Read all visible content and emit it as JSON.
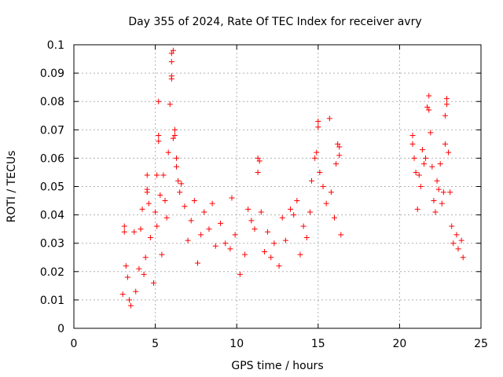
{
  "chart_data": {
    "type": "scatter",
    "title": "Day 355 of 2024, Rate Of TEC Index for receiver avry",
    "xlabel": "GPS time / hours",
    "ylabel": "ROTI / TECUs",
    "xlim": [
      0,
      25
    ],
    "ylim": [
      0,
      0.1
    ],
    "xticks": [
      0,
      5,
      10,
      15,
      20,
      25
    ],
    "yticks": [
      0,
      0.01,
      0.02,
      0.03,
      0.04,
      0.05,
      0.06,
      0.07,
      0.08,
      0.09,
      0.1
    ],
    "xtick_labels": [
      "0",
      "5",
      "10",
      "15",
      "20",
      "25"
    ],
    "ytick_labels": [
      "0",
      "0.01",
      "0.02",
      "0.03",
      "0.04",
      "0.05",
      "0.06",
      "0.07",
      "0.08",
      "0.09",
      "0.1"
    ],
    "grid": true,
    "marker": "+",
    "color": "#ff0000",
    "series": [
      {
        "points": [
          [
            3.0,
            0.012
          ],
          [
            3.1,
            0.034
          ],
          [
            3.1,
            0.036
          ],
          [
            3.2,
            0.022
          ],
          [
            3.3,
            0.018
          ],
          [
            3.4,
            0.01
          ],
          [
            3.5,
            0.008
          ],
          [
            3.7,
            0.034
          ],
          [
            3.8,
            0.013
          ],
          [
            4.0,
            0.021
          ],
          [
            4.1,
            0.035
          ],
          [
            4.2,
            0.042
          ],
          [
            4.3,
            0.019
          ],
          [
            4.4,
            0.025
          ],
          [
            4.5,
            0.054
          ],
          [
            4.5,
            0.049
          ],
          [
            4.5,
            0.048
          ],
          [
            4.6,
            0.044
          ],
          [
            4.7,
            0.032
          ],
          [
            4.9,
            0.016
          ],
          [
            5.0,
            0.041
          ],
          [
            5.1,
            0.036
          ],
          [
            5.1,
            0.054
          ],
          [
            5.2,
            0.066
          ],
          [
            5.2,
            0.068
          ],
          [
            5.2,
            0.08
          ],
          [
            5.3,
            0.047
          ],
          [
            5.4,
            0.026
          ],
          [
            5.5,
            0.054
          ],
          [
            5.6,
            0.045
          ],
          [
            5.7,
            0.039
          ],
          [
            5.8,
            0.062
          ],
          [
            5.9,
            0.079
          ],
          [
            6.0,
            0.088
          ],
          [
            6.0,
            0.089
          ],
          [
            6.0,
            0.094
          ],
          [
            6.0,
            0.097
          ],
          [
            6.1,
            0.098
          ],
          [
            6.1,
            0.067
          ],
          [
            6.2,
            0.07
          ],
          [
            6.2,
            0.068
          ],
          [
            6.3,
            0.06
          ],
          [
            6.3,
            0.057
          ],
          [
            6.4,
            0.052
          ],
          [
            6.5,
            0.048
          ],
          [
            6.6,
            0.051
          ],
          [
            6.8,
            0.043
          ],
          [
            7.0,
            0.031
          ],
          [
            7.2,
            0.038
          ],
          [
            7.4,
            0.045
          ],
          [
            7.6,
            0.023
          ],
          [
            7.8,
            0.033
          ],
          [
            8.0,
            0.041
          ],
          [
            8.3,
            0.035
          ],
          [
            8.5,
            0.044
          ],
          [
            8.7,
            0.029
          ],
          [
            9.0,
            0.037
          ],
          [
            9.3,
            0.03
          ],
          [
            9.6,
            0.028
          ],
          [
            9.7,
            0.046
          ],
          [
            9.9,
            0.033
          ],
          [
            10.2,
            0.019
          ],
          [
            10.5,
            0.026
          ],
          [
            10.7,
            0.042
          ],
          [
            10.9,
            0.038
          ],
          [
            11.1,
            0.035
          ],
          [
            11.3,
            0.06
          ],
          [
            11.4,
            0.059
          ],
          [
            11.3,
            0.055
          ],
          [
            11.5,
            0.041
          ],
          [
            11.7,
            0.027
          ],
          [
            11.9,
            0.034
          ],
          [
            12.1,
            0.025
          ],
          [
            12.3,
            0.03
          ],
          [
            12.6,
            0.022
          ],
          [
            12.8,
            0.039
          ],
          [
            13.0,
            0.031
          ],
          [
            13.3,
            0.042
          ],
          [
            13.5,
            0.04
          ],
          [
            13.7,
            0.045
          ],
          [
            13.9,
            0.026
          ],
          [
            14.1,
            0.036
          ],
          [
            14.3,
            0.032
          ],
          [
            14.5,
            0.041
          ],
          [
            14.6,
            0.052
          ],
          [
            14.8,
            0.06
          ],
          [
            14.9,
            0.062
          ],
          [
            15.0,
            0.073
          ],
          [
            15.0,
            0.071
          ],
          [
            15.1,
            0.055
          ],
          [
            15.3,
            0.05
          ],
          [
            15.5,
            0.044
          ],
          [
            15.7,
            0.074
          ],
          [
            15.8,
            0.048
          ],
          [
            16.0,
            0.039
          ],
          [
            16.1,
            0.058
          ],
          [
            16.2,
            0.065
          ],
          [
            16.3,
            0.064
          ],
          [
            16.3,
            0.061
          ],
          [
            16.4,
            0.033
          ],
          [
            20.8,
            0.065
          ],
          [
            20.8,
            0.068
          ],
          [
            20.9,
            0.06
          ],
          [
            21.0,
            0.055
          ],
          [
            21.1,
            0.042
          ],
          [
            21.2,
            0.054
          ],
          [
            21.3,
            0.05
          ],
          [
            21.4,
            0.063
          ],
          [
            21.5,
            0.058
          ],
          [
            21.6,
            0.06
          ],
          [
            21.7,
            0.078
          ],
          [
            21.8,
            0.082
          ],
          [
            21.8,
            0.077
          ],
          [
            21.9,
            0.069
          ],
          [
            22.0,
            0.057
          ],
          [
            22.1,
            0.045
          ],
          [
            22.2,
            0.041
          ],
          [
            22.3,
            0.052
          ],
          [
            22.4,
            0.049
          ],
          [
            22.5,
            0.058
          ],
          [
            22.6,
            0.044
          ],
          [
            22.7,
            0.048
          ],
          [
            22.8,
            0.065
          ],
          [
            22.8,
            0.075
          ],
          [
            22.9,
            0.081
          ],
          [
            22.9,
            0.079
          ],
          [
            23.0,
            0.062
          ],
          [
            23.1,
            0.048
          ],
          [
            23.2,
            0.036
          ],
          [
            23.3,
            0.03
          ],
          [
            23.5,
            0.033
          ],
          [
            23.6,
            0.028
          ],
          [
            23.8,
            0.031
          ],
          [
            23.9,
            0.025
          ]
        ]
      }
    ]
  }
}
